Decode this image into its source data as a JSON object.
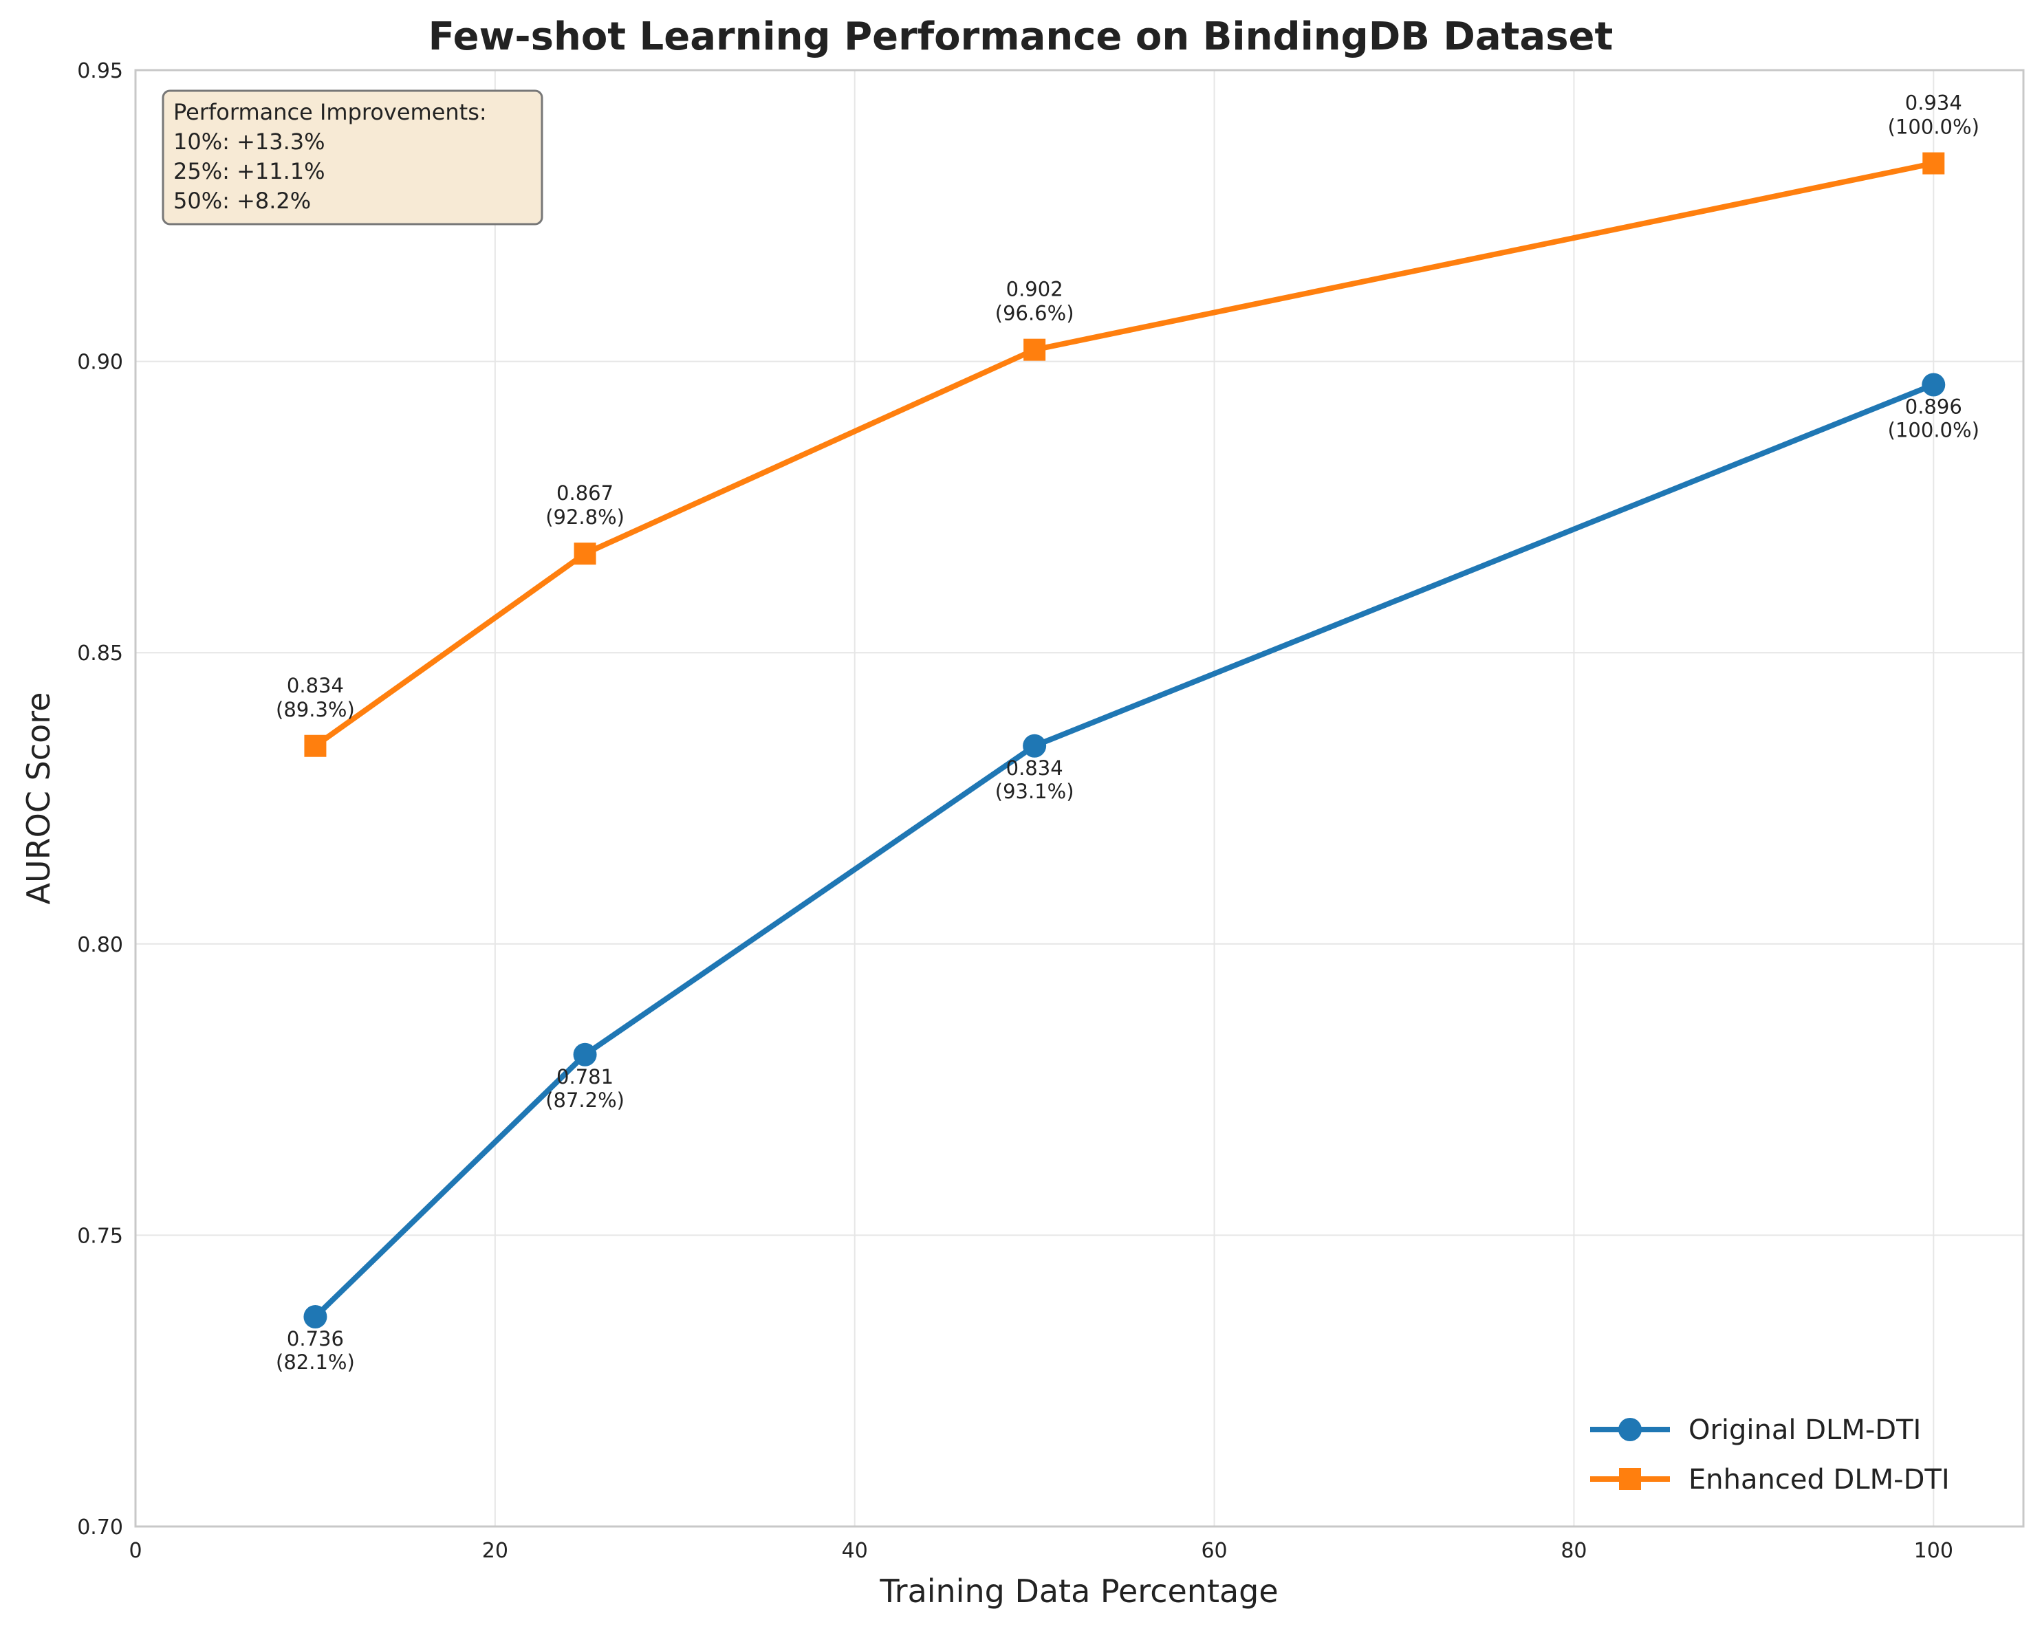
{
  "chart_data": {
    "type": "line",
    "title": "Few-shot Learning Performance on BindingDB Dataset",
    "xlabel": "Training Data Percentage",
    "ylabel": "AUROC Score",
    "xlim": [
      0,
      105
    ],
    "ylim": [
      0.7,
      0.95
    ],
    "xticks": [
      0,
      20,
      40,
      60,
      80,
      100
    ],
    "yticks": [
      0.7,
      0.75,
      0.8,
      0.85,
      0.9,
      0.95
    ],
    "xtick_labels": [
      "0",
      "20",
      "40",
      "60",
      "80",
      "100"
    ],
    "ytick_labels": [
      "0.70",
      "0.75",
      "0.80",
      "0.85",
      "0.90",
      "0.95"
    ],
    "grid": true,
    "legend_position": "lower-right",
    "series": [
      {
        "name": "Original DLM-DTI",
        "color": "#1f77b4",
        "marker": "circle",
        "label_position": "below",
        "x": [
          10,
          25,
          50,
          100
        ],
        "y": [
          0.736,
          0.781,
          0.834,
          0.896
        ],
        "labels": [
          [
            "0.736",
            "(82.1%)"
          ],
          [
            "0.781",
            "(87.2%)"
          ],
          [
            "0.834",
            "(93.1%)"
          ],
          [
            "0.896",
            "(100.0%)"
          ]
        ]
      },
      {
        "name": "Enhanced DLM-DTI",
        "color": "#ff7f0e",
        "marker": "square",
        "label_position": "above",
        "x": [
          10,
          25,
          50,
          100
        ],
        "y": [
          0.834,
          0.867,
          0.902,
          0.934
        ],
        "labels": [
          [
            "0.834",
            "(89.3%)"
          ],
          [
            "0.867",
            "(92.8%)"
          ],
          [
            "0.902",
            "(96.6%)"
          ],
          [
            "0.934",
            "(100.0%)"
          ]
        ]
      }
    ],
    "annotation_box": {
      "lines": [
        "Performance Improvements:",
        "10%: +13.3%",
        "25%: +11.1%",
        "50%: +8.2%"
      ],
      "background": "#f7ead5"
    }
  }
}
